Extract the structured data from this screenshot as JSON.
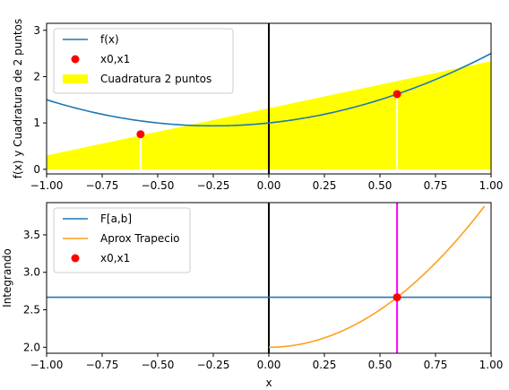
{
  "chart_data": [
    {
      "type": "line",
      "title": "",
      "xlabel": "",
      "ylabel": "f(x) y Cuadratura de 2 puntos",
      "xlim": [
        -1.0,
        1.0
      ],
      "ylim": [
        -0.1,
        3.15
      ],
      "grid": false,
      "legend_position": "upper-left",
      "x_ticks": [
        -1.0,
        -0.75,
        -0.5,
        -0.25,
        0.0,
        0.25,
        0.5,
        0.75,
        1.0
      ],
      "x_tick_labels": [
        "−1.00",
        "−0.75",
        "−0.50",
        "−0.25",
        "0.00",
        "0.25",
        "0.50",
        "0.75",
        "1.00"
      ],
      "y_ticks": [
        0,
        1,
        2,
        3
      ],
      "y_tick_labels": [
        "0",
        "1",
        "2",
        "3"
      ],
      "series": [
        {
          "name": "f(x)",
          "kind": "curve",
          "function": "x^2 + x/2 + 1",
          "x_range": [
            -1.0,
            1.0
          ],
          "color": "#1f77b4"
        },
        {
          "name": "x0,x1",
          "kind": "points",
          "x": [
            -0.577,
            0.577
          ],
          "y": [
            0.756,
            1.622
          ],
          "color": "#ff0000"
        },
        {
          "name": "Cuadratura 2 puntos",
          "kind": "filled-line",
          "x": [
            -1.0,
            1.0
          ],
          "y": [
            0.3,
            2.333
          ],
          "color": "#ffff00"
        }
      ],
      "vertical_lines": [
        {
          "x": 0.0,
          "color": "#000000"
        },
        {
          "x": -0.577,
          "y_top": 0.756,
          "color": "#ffffff"
        },
        {
          "x": 0.577,
          "y_top": 1.622,
          "color": "#ffffff"
        }
      ]
    },
    {
      "type": "line",
      "title": "",
      "xlabel": "x",
      "ylabel": "Integrando",
      "xlim": [
        -1.0,
        1.0
      ],
      "ylim": [
        1.92,
        3.93
      ],
      "grid": false,
      "legend_position": "upper-left",
      "x_ticks": [
        -1.0,
        -0.75,
        -0.5,
        -0.25,
        0.0,
        0.25,
        0.5,
        0.75,
        1.0
      ],
      "x_tick_labels": [
        "−1.00",
        "−0.75",
        "−0.50",
        "−0.25",
        "0.00",
        "0.25",
        "0.50",
        "0.75",
        "1.00"
      ],
      "y_ticks": [
        2.0,
        2.5,
        3.0,
        3.5
      ],
      "y_tick_labels": [
        "2.0",
        "2.5",
        "3.0",
        "3.5"
      ],
      "series": [
        {
          "name": "F[a,b]",
          "kind": "hline",
          "y": 2.667,
          "color": "#1f77b4"
        },
        {
          "name": "Aprox Trapecio",
          "kind": "curve",
          "function": "2 + 2x^2",
          "x_range": [
            0.0,
            0.97
          ],
          "color": "#ff9f1c"
        },
        {
          "name": "x0,x1",
          "kind": "points",
          "x": [
            0.577
          ],
          "y": [
            2.667
          ],
          "color": "#ff0000"
        }
      ],
      "vertical_lines": [
        {
          "x": 0.0,
          "color": "#000000"
        },
        {
          "x": 0.577,
          "color": "#ff00ff"
        }
      ]
    }
  ]
}
